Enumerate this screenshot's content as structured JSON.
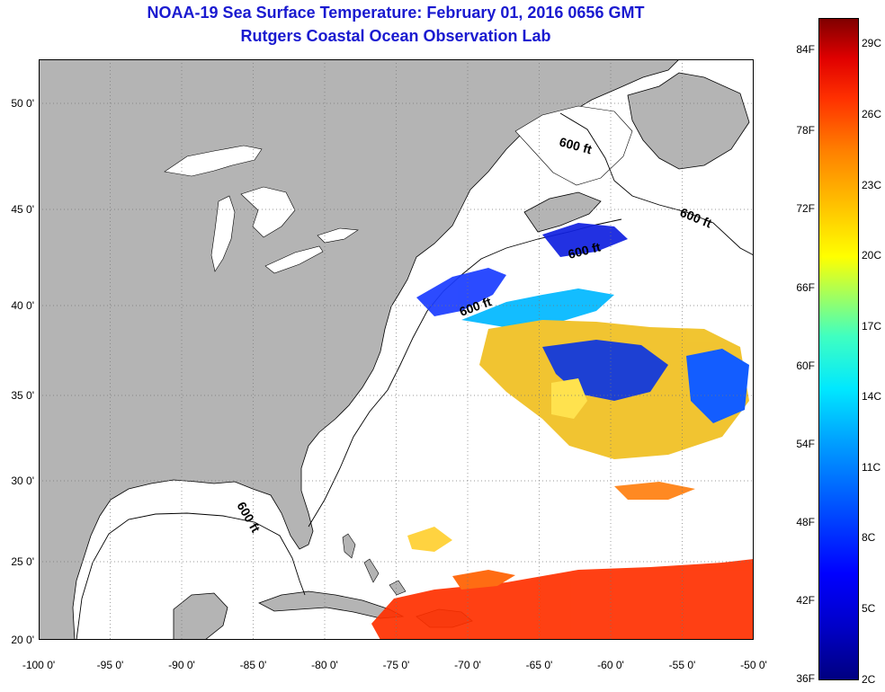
{
  "title_line1": "NOAA-19 Sea Surface Temperature:  February 01, 2016 0656 GMT",
  "title_line2": "Rutgers Coastal Ocean Observation Lab",
  "x_ticks": [
    "-100 0'",
    "-95 0'",
    "-90 0'",
    "-85 0'",
    "-80 0'",
    "-75 0'",
    "-70 0'",
    "-65 0'",
    "-60 0'",
    "-55 0'",
    "-50 0'"
  ],
  "y_ticks": [
    "50 0'",
    "45 0'",
    "40 0'",
    "35 0'",
    "30 0'",
    "25 0'",
    "20 0'"
  ],
  "colorbar": {
    "fahrenheit": [
      "84F",
      "78F",
      "72F",
      "66F",
      "60F",
      "54F",
      "48F",
      "42F",
      "36F"
    ],
    "celsius": [
      "29C",
      "26C",
      "23C",
      "20C",
      "17C",
      "14C",
      "11C",
      "8C",
      "5C",
      "2C"
    ]
  },
  "contour_labels": [
    "600 ft",
    "600 ft",
    "600 ft",
    "600 ft",
    "600 ft"
  ],
  "colors": {
    "land": "#b4b4b4",
    "ocean": "#ffffff",
    "title": "#1a1ad0"
  }
}
